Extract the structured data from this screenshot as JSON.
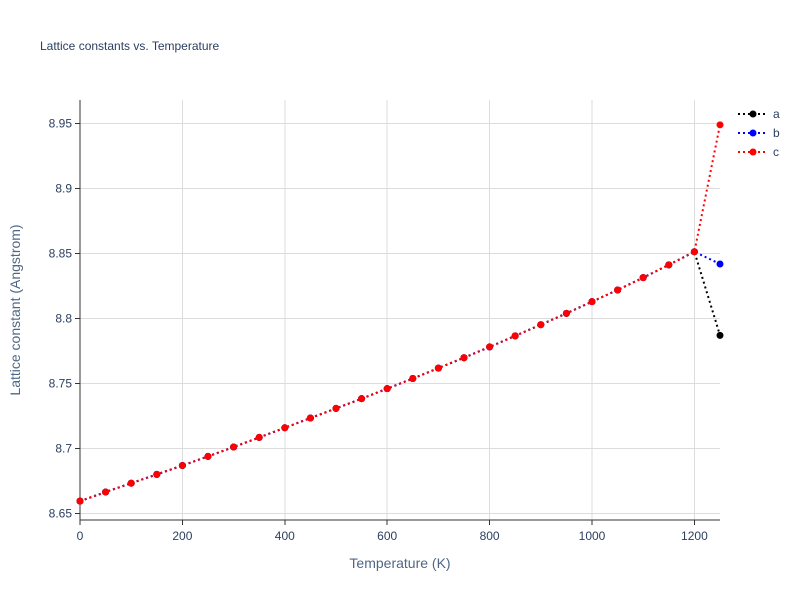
{
  "chart_data": {
    "type": "line",
    "title": "Lattice constants vs. Temperature",
    "xlabel": "Temperature (K)",
    "ylabel": "Lattice constant (Angstrom)",
    "xlim": [
      0,
      1250
    ],
    "ylim": [
      8.645,
      8.968
    ],
    "x_ticks": [
      0,
      200,
      400,
      600,
      800,
      1000,
      1200
    ],
    "y_ticks": [
      8.65,
      8.7,
      8.75,
      8.8,
      8.85,
      8.9,
      8.95
    ],
    "x_tick_labels": [
      "0",
      "200",
      "400",
      "600",
      "800",
      "1000",
      "1200"
    ],
    "y_tick_labels": [
      "8.65",
      "8.7",
      "8.75",
      "8.8",
      "8.85",
      "8.9",
      "8.95"
    ],
    "grid": true,
    "legend_position": "top-right",
    "line_style": "dotted",
    "marker": "circle",
    "x": [
      0,
      50,
      100,
      150,
      200,
      250,
      300,
      350,
      400,
      450,
      500,
      550,
      600,
      650,
      700,
      750,
      800,
      850,
      900,
      950,
      1000,
      1050,
      1100,
      1150,
      1200,
      1250
    ],
    "series": [
      {
        "name": "a",
        "color": "#000000",
        "values": [
          8.6595,
          8.6665,
          8.6733,
          8.6801,
          8.6869,
          8.6939,
          8.7011,
          8.7085,
          8.7159,
          8.7234,
          8.7308,
          8.7383,
          8.746,
          8.7538,
          8.7618,
          8.7698,
          8.7781,
          8.7866,
          8.7952,
          8.8039,
          8.8129,
          8.8219,
          8.8314,
          8.8412,
          8.8513,
          8.787
        ]
      },
      {
        "name": "b",
        "color": "#0000ff",
        "values": [
          8.6595,
          8.6665,
          8.6733,
          8.6801,
          8.6869,
          8.6939,
          8.7011,
          8.7085,
          8.7159,
          8.7234,
          8.7308,
          8.7383,
          8.746,
          8.7538,
          8.7618,
          8.7698,
          8.7781,
          8.7866,
          8.7952,
          8.8039,
          8.8129,
          8.8219,
          8.8314,
          8.8412,
          8.8513,
          8.8419
        ]
      },
      {
        "name": "c",
        "color": "#ff0000",
        "values": [
          8.6595,
          8.6665,
          8.6733,
          8.6801,
          8.6869,
          8.6939,
          8.7011,
          8.7085,
          8.7159,
          8.7234,
          8.7308,
          8.7383,
          8.746,
          8.7538,
          8.7618,
          8.7698,
          8.7781,
          8.7866,
          8.7952,
          8.8039,
          8.8129,
          8.8219,
          8.8314,
          8.8412,
          8.8513,
          8.9489
        ]
      }
    ]
  }
}
